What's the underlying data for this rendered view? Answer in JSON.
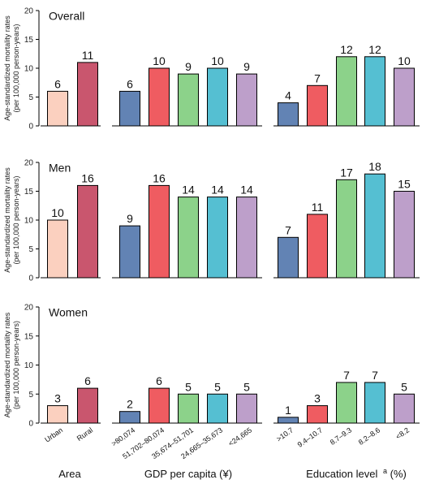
{
  "colors": {
    "urban": "#FBD0BF",
    "rural": "#C9566E",
    "g1": "#6283B4",
    "g2": "#EF5C61",
    "g3": "#8CD28A",
    "g4": "#55BFD2",
    "g5": "#BD9FCA"
  },
  "y_axis_label": [
    "Age-standardized mortality rates",
    "(per 100,000 person-years)"
  ],
  "groups": {
    "area": {
      "title": "Area",
      "categories": [
        "Urban",
        "Rural"
      ]
    },
    "gdp": {
      "title": "GDP per capita (¥)",
      "categories": [
        ">80,074",
        "51,702–80,074",
        "35,674–51,701",
        "24,665–35,673",
        "<24,665"
      ]
    },
    "education": {
      "title": "Education level",
      "title_superscript": "a",
      "title_suffix": "(%)",
      "categories": [
        ">10.7",
        "9.4–10.7",
        "8.7–9.3",
        "8.2–8.6",
        "<8.2"
      ]
    }
  },
  "chart_data": [
    {
      "type": "bar",
      "title": "Overall",
      "ylim": [
        0,
        20
      ],
      "yticks": [
        0,
        5,
        10,
        15,
        20
      ],
      "series": [
        {
          "group": "Area",
          "categories": [
            "Urban",
            "Rural"
          ],
          "values": [
            6,
            11
          ]
        },
        {
          "group": "GDP per capita (¥)",
          "categories": [
            ">80,074",
            "51,702–80,074",
            "35,674–51,701",
            "24,665–35,673",
            "<24,665"
          ],
          "values": [
            6,
            10,
            9,
            10,
            9
          ]
        },
        {
          "group": "Education level",
          "categories": [
            ">10.7",
            "9.4–10.7",
            "8.7–9.3",
            "8.2–8.6",
            "<8.2"
          ],
          "values": [
            4,
            7,
            12,
            12,
            10
          ]
        }
      ]
    },
    {
      "type": "bar",
      "title": "Men",
      "ylim": [
        0,
        20
      ],
      "yticks": [
        0,
        5,
        10,
        15,
        20
      ],
      "series": [
        {
          "group": "Area",
          "categories": [
            "Urban",
            "Rural"
          ],
          "values": [
            10,
            16
          ]
        },
        {
          "group": "GDP per capita (¥)",
          "categories": [
            ">80,074",
            "51,702–80,074",
            "35,674–51,701",
            "24,665–35,673",
            "<24,665"
          ],
          "values": [
            9,
            16,
            14,
            14,
            14
          ]
        },
        {
          "group": "Education level",
          "categories": [
            ">10.7",
            "9.4–10.7",
            "8.7–9.3",
            "8.2–8.6",
            "<8.2"
          ],
          "values": [
            7,
            11,
            17,
            18,
            15
          ]
        }
      ]
    },
    {
      "type": "bar",
      "title": "Women",
      "ylim": [
        0,
        20
      ],
      "yticks": [
        0,
        5,
        10,
        15,
        20
      ],
      "series": [
        {
          "group": "Area",
          "categories": [
            "Urban",
            "Rural"
          ],
          "values": [
            3,
            6
          ]
        },
        {
          "group": "GDP per capita (¥)",
          "categories": [
            ">80,074",
            "51,702–80,074",
            "35,674–51,701",
            "24,665–35,673",
            "<24,665"
          ],
          "values": [
            2,
            6,
            5,
            5,
            5
          ]
        },
        {
          "group": "Education level",
          "categories": [
            ">10.7",
            "9.4–10.7",
            "8.7–9.3",
            "8.2–8.6",
            "<8.2"
          ],
          "values": [
            1,
            3,
            7,
            7,
            5
          ]
        }
      ]
    }
  ]
}
